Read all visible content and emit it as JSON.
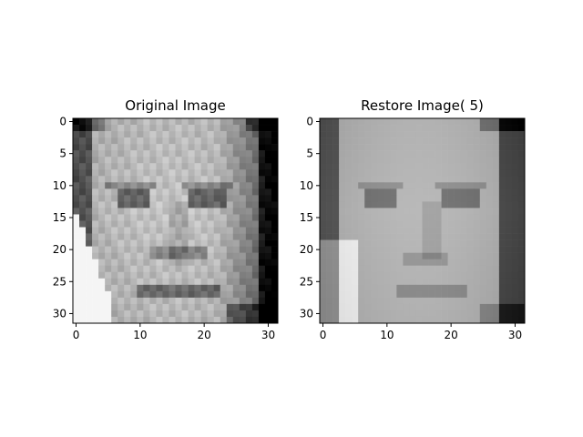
{
  "chart_data": [
    {
      "type": "heatmap",
      "title": "Original Image",
      "colormap": "gray",
      "grid": false,
      "rows": 32,
      "cols": 32,
      "xticks": [
        0,
        10,
        20,
        30
      ],
      "yticks": [
        0,
        5,
        10,
        15,
        20,
        25,
        30
      ],
      "xlim": [
        -0.5,
        31.5
      ],
      "ylim": [
        31.5,
        -0.5
      ],
      "content": "grayscale face image, pixel intensities"
    },
    {
      "type": "heatmap",
      "title": "Restore Image( 5)",
      "colormap": "gray",
      "grid": false,
      "rows": 32,
      "cols": 32,
      "xticks": [
        0,
        10,
        20,
        30
      ],
      "yticks": [
        0,
        5,
        10,
        15,
        20,
        25,
        30
      ],
      "xlim": [
        -0.5,
        31.5
      ],
      "ylim": [
        31.5,
        -0.5
      ],
      "content": "grayscale face image reconstruction, pixel intensities"
    }
  ]
}
